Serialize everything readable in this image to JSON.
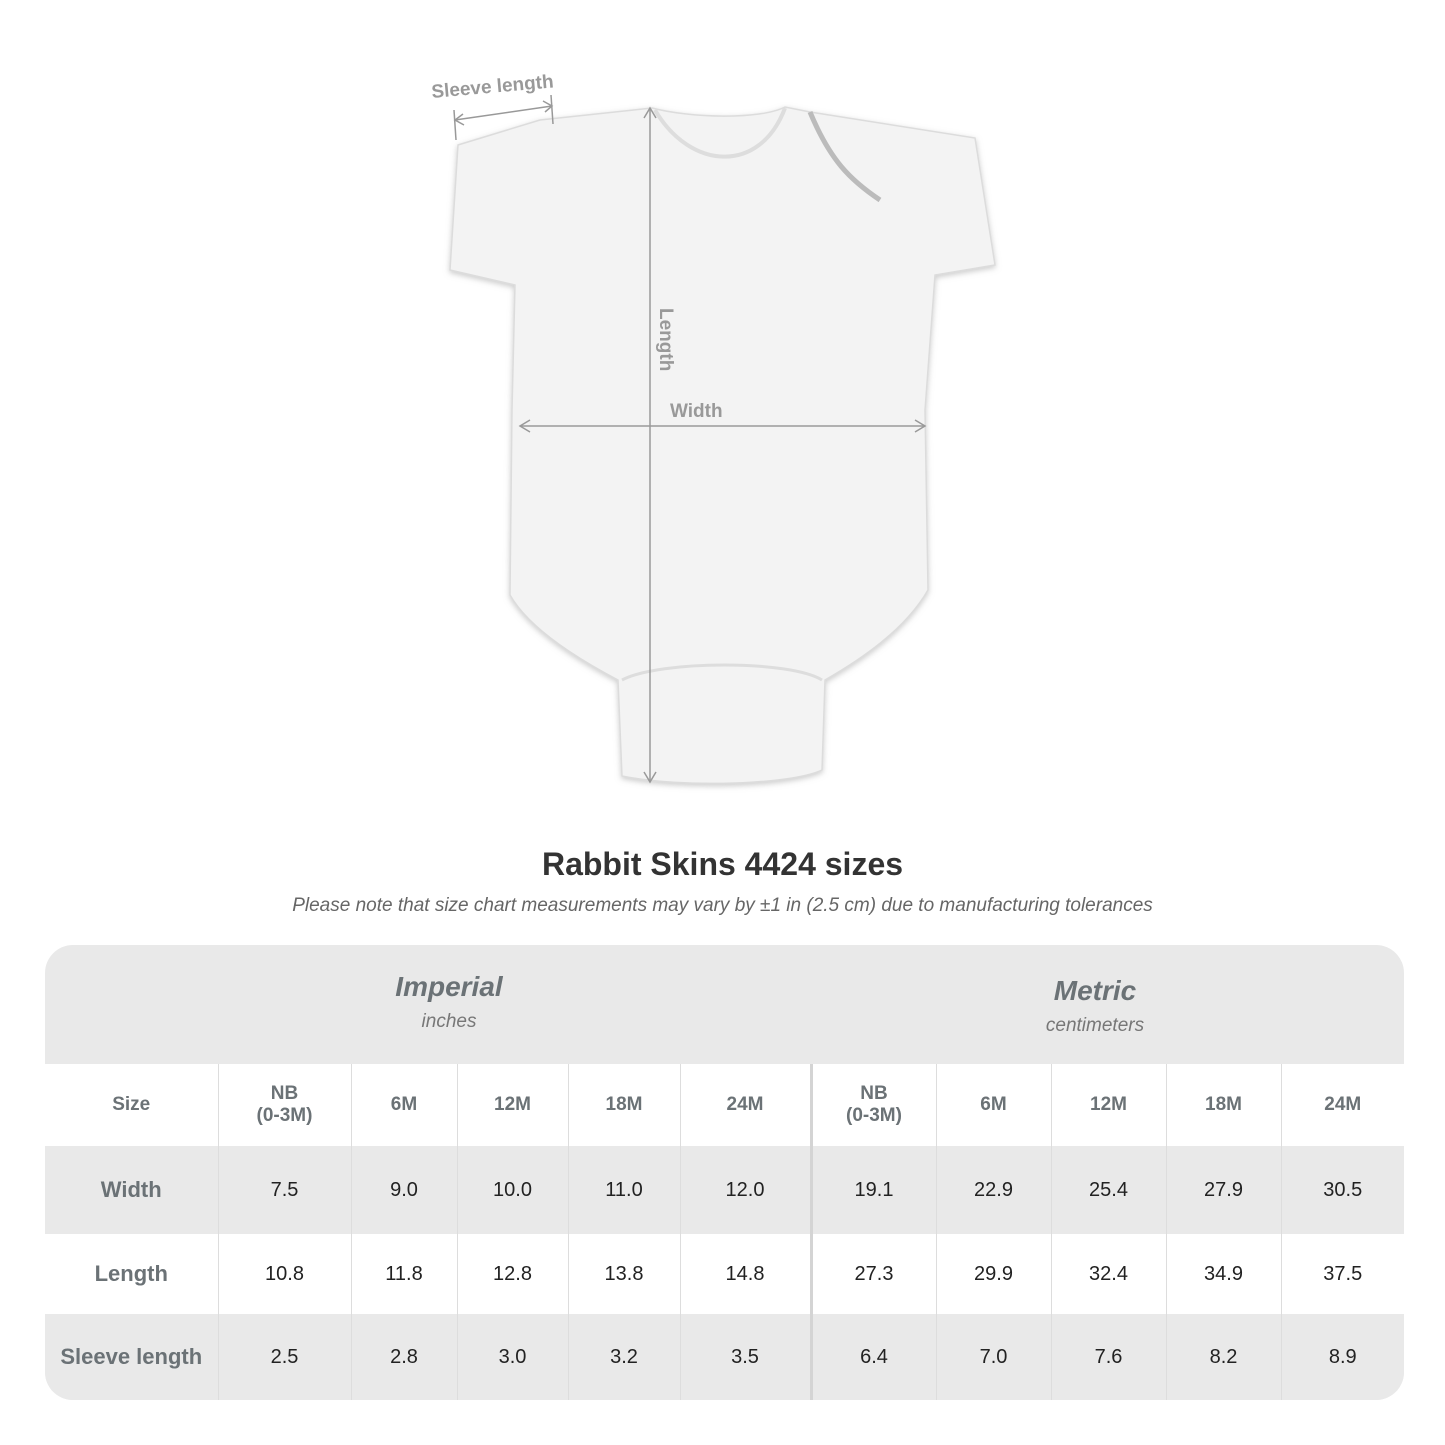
{
  "diagram": {
    "labels": {
      "sleeve": "Sleeve length",
      "length": "Length",
      "width": "Width"
    }
  },
  "title": "Rabbit Skins 4424 sizes",
  "note": "Please note that size chart measurements may vary by ±1 in (2.5 cm) due to manufacturing tolerances",
  "table": {
    "imperial": {
      "name": "Imperial",
      "unit": "inches"
    },
    "metric": {
      "name": "Metric",
      "unit": "centimeters"
    },
    "size_label": "Size",
    "sizes": [
      "NB\n(0-3M)",
      "6M",
      "12M",
      "18M",
      "24M"
    ],
    "rows": [
      {
        "label": "Width",
        "imperial": [
          "7.5",
          "9.0",
          "10.0",
          "11.0",
          "12.0"
        ],
        "metric": [
          "19.1",
          "22.9",
          "25.4",
          "27.9",
          "30.5"
        ]
      },
      {
        "label": "Length",
        "imperial": [
          "10.8",
          "11.8",
          "12.8",
          "13.8",
          "14.8"
        ],
        "metric": [
          "27.3",
          "29.9",
          "32.4",
          "34.9",
          "37.5"
        ]
      },
      {
        "label": "Sleeve length",
        "imperial": [
          "2.5",
          "2.8",
          "3.0",
          "3.2",
          "3.5"
        ],
        "metric": [
          "6.4",
          "7.0",
          "7.6",
          "8.2",
          "8.9"
        ]
      }
    ]
  }
}
